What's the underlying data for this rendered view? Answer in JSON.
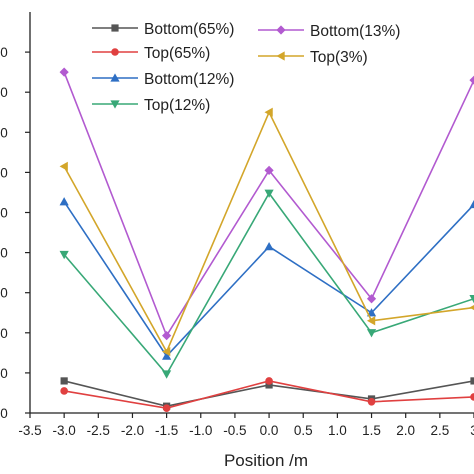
{
  "chart_data": {
    "type": "line",
    "xlabel": "Position /m",
    "ylabel": "",
    "xlim": [
      -3.5,
      3.0
    ],
    "ylim": [
      0,
      10
    ],
    "x_ticks": [
      "-3.5",
      "-3.0",
      "-2.5",
      "-2.0",
      "-1.5",
      "-1.0",
      "-0.5",
      "0.0",
      "0.5",
      "1.0",
      "1.5",
      "2.0",
      "2.5",
      "3"
    ],
    "y_ticks": [
      "0",
      "0",
      "0",
      "0",
      "0",
      "0",
      "0",
      "0",
      "0",
      "0"
    ],
    "x": [
      -3.0,
      -1.5,
      0.0,
      1.5,
      3.0
    ],
    "legend_position": "top",
    "series": [
      {
        "name": "Bottom(65%)",
        "color": "#555555",
        "marker": "square",
        "values": [
          0.8,
          0.17,
          0.7,
          0.35,
          0.8
        ]
      },
      {
        "name": "Top(65%)",
        "color": "#e04040",
        "marker": "circle",
        "values": [
          0.55,
          0.12,
          0.8,
          0.28,
          0.4
        ]
      },
      {
        "name": "Bottom(12%)",
        "color": "#2e6fc4",
        "marker": "triangle-up",
        "values": [
          5.27,
          1.42,
          4.15,
          2.5,
          5.2
        ]
      },
      {
        "name": "Top(12%)",
        "color": "#38a877",
        "marker": "triangle-down",
        "values": [
          3.95,
          0.97,
          5.48,
          2.0,
          2.85
        ]
      },
      {
        "name": "Bottom(13%)",
        "color": "#b25ad0",
        "marker": "diamond",
        "values": [
          8.5,
          1.93,
          6.05,
          2.85,
          8.3
        ]
      },
      {
        "name": "Top(3%)",
        "color": "#d3a62a",
        "marker": "triangle-left",
        "values": [
          6.15,
          1.53,
          7.5,
          2.3,
          2.63
        ]
      }
    ],
    "legend_order": [
      0,
      4,
      1,
      5,
      2,
      3
    ],
    "grid": false
  }
}
